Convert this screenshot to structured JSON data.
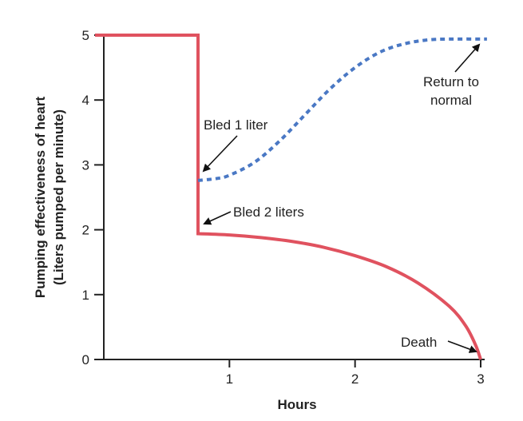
{
  "chart_data": {
    "type": "line",
    "xlabel": "Hours",
    "ylabel_line1": "Pumping effectiveness of heart",
    "ylabel_line2": "(Liters pumped per minute)",
    "xlim": [
      0,
      3
    ],
    "ylim": [
      0,
      5
    ],
    "x_ticks": [
      1,
      2,
      3
    ],
    "y_ticks": [
      0,
      1,
      2,
      3,
      4,
      5
    ],
    "grid": false,
    "series": [
      {
        "style": "solid",
        "color": "#e0525f",
        "points": [
          [
            -0.07,
            5.0
          ],
          [
            0.75,
            5.0
          ],
          [
            0.75,
            1.94
          ],
          [
            1.0,
            1.92
          ],
          [
            1.25,
            1.88
          ],
          [
            1.5,
            1.82
          ],
          [
            1.75,
            1.73
          ],
          [
            2.0,
            1.6
          ],
          [
            2.25,
            1.43
          ],
          [
            2.5,
            1.18
          ],
          [
            2.75,
            0.82
          ],
          [
            2.88,
            0.52
          ],
          [
            2.96,
            0.22
          ],
          [
            3.0,
            0.0
          ]
        ]
      },
      {
        "style": "dashed",
        "color": "#4a78c4",
        "points": [
          [
            0.75,
            2.76
          ],
          [
            0.9,
            2.79
          ],
          [
            1.0,
            2.84
          ],
          [
            1.2,
            3.04
          ],
          [
            1.4,
            3.37
          ],
          [
            1.6,
            3.77
          ],
          [
            1.8,
            4.17
          ],
          [
            2.0,
            4.5
          ],
          [
            2.2,
            4.74
          ],
          [
            2.4,
            4.87
          ],
          [
            2.6,
            4.93
          ],
          [
            2.8,
            4.94
          ],
          [
            3.05,
            4.94
          ]
        ]
      }
    ],
    "annotations": [
      {
        "text": "Bled 1 liter",
        "x": 0.75,
        "y": 2.76
      },
      {
        "text": "Bled 2 liters",
        "x": 0.75,
        "y": 1.94
      },
      {
        "text_line1": "Return to",
        "text_line2": "normal",
        "x": 3.0,
        "y": 4.94
      },
      {
        "text": "Death",
        "x": 3.0,
        "y": 0.0
      }
    ]
  }
}
